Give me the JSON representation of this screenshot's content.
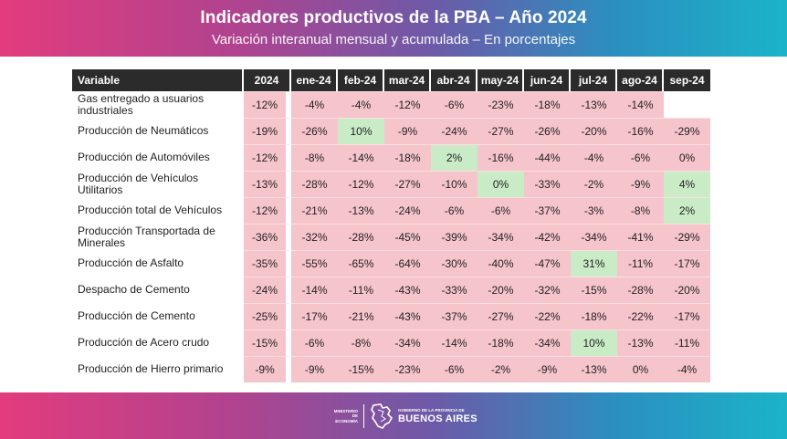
{
  "header": {
    "title": "Indicadores productivos de la PBA – Año 2024",
    "subtitle": "Variación interanual mensual y acumulada – En porcentajes"
  },
  "table": {
    "columns": [
      "Variable",
      "2024",
      "ene-24",
      "feb-24",
      "mar-24",
      "abr-24",
      "may-24",
      "jun-24",
      "jul-24",
      "ago-24",
      "sep-24"
    ],
    "rows": [
      {
        "label": "Gas entregado a usuarios industriales",
        "values": [
          "-12%",
          "-4%",
          "-4%",
          "-12%",
          "-6%",
          "-23%",
          "-18%",
          "-13%",
          "-14%",
          ""
        ]
      },
      {
        "label": "Producción de Neumáticos",
        "values": [
          "-19%",
          "-26%",
          "10%",
          "-9%",
          "-24%",
          "-27%",
          "-26%",
          "-20%",
          "-16%",
          "-29%"
        ]
      },
      {
        "label": "Producción de Automóviles",
        "values": [
          "-12%",
          "-8%",
          "-14%",
          "-18%",
          "2%",
          "-16%",
          "-44%",
          "-4%",
          "-6%",
          "0%"
        ]
      },
      {
        "label": "Producción de Vehículos Utilitarios",
        "values": [
          "-13%",
          "-28%",
          "-12%",
          "-27%",
          "-10%",
          "0%",
          "-33%",
          "-2%",
          "-9%",
          "4%"
        ]
      },
      {
        "label": "Producción total de Vehículos",
        "values": [
          "-12%",
          "-21%",
          "-13%",
          "-24%",
          "-6%",
          "-6%",
          "-37%",
          "-3%",
          "-8%",
          "2%"
        ]
      },
      {
        "label": "Producción Transportada de Minerales",
        "values": [
          "-36%",
          "-32%",
          "-28%",
          "-45%",
          "-39%",
          "-34%",
          "-42%",
          "-34%",
          "-41%",
          "-29%"
        ]
      },
      {
        "label": "Producción de Asfalto",
        "values": [
          "-35%",
          "-55%",
          "-65%",
          "-64%",
          "-30%",
          "-40%",
          "-47%",
          "31%",
          "-11%",
          "-17%"
        ]
      },
      {
        "label": "Despacho de Cemento",
        "values": [
          "-24%",
          "-14%",
          "-11%",
          "-43%",
          "-33%",
          "-20%",
          "-32%",
          "-15%",
          "-28%",
          "-20%"
        ]
      },
      {
        "label": "Producción de Cemento",
        "values": [
          "-25%",
          "-17%",
          "-21%",
          "-43%",
          "-37%",
          "-27%",
          "-22%",
          "-18%",
          "-22%",
          "-17%"
        ]
      },
      {
        "label": "Producción de Acero crudo",
        "values": [
          "-15%",
          "-6%",
          "-8%",
          "-34%",
          "-14%",
          "-18%",
          "-34%",
          "10%",
          "-13%",
          "-11%"
        ]
      },
      {
        "label": "Producción de Hierro primario",
        "values": [
          "-9%",
          "-9%",
          "-15%",
          "-23%",
          "-6%",
          "-2%",
          "-9%",
          "-13%",
          "0%",
          "-4%"
        ]
      }
    ],
    "positive_cells": [
      {
        "row": 1,
        "col": 2
      },
      {
        "row": 2,
        "col": 4
      },
      {
        "row": 3,
        "col": 5
      },
      {
        "row": 3,
        "col": 9
      },
      {
        "row": 4,
        "col": 9
      },
      {
        "row": 6,
        "col": 7
      },
      {
        "row": 9,
        "col": 7
      }
    ],
    "colors": {
      "negative": "#f6c4cb",
      "positive": "#c9ecc7",
      "header_bg": "#2b2b2b"
    }
  },
  "footer": {
    "ministry": "MINISTERIO DE ECONOMÍA",
    "gov_line": "GOBIERNO DE LA PROVINCIA DE",
    "gov_name": "BUENOS AIRES",
    "logo_icon": "province-map-icon"
  }
}
